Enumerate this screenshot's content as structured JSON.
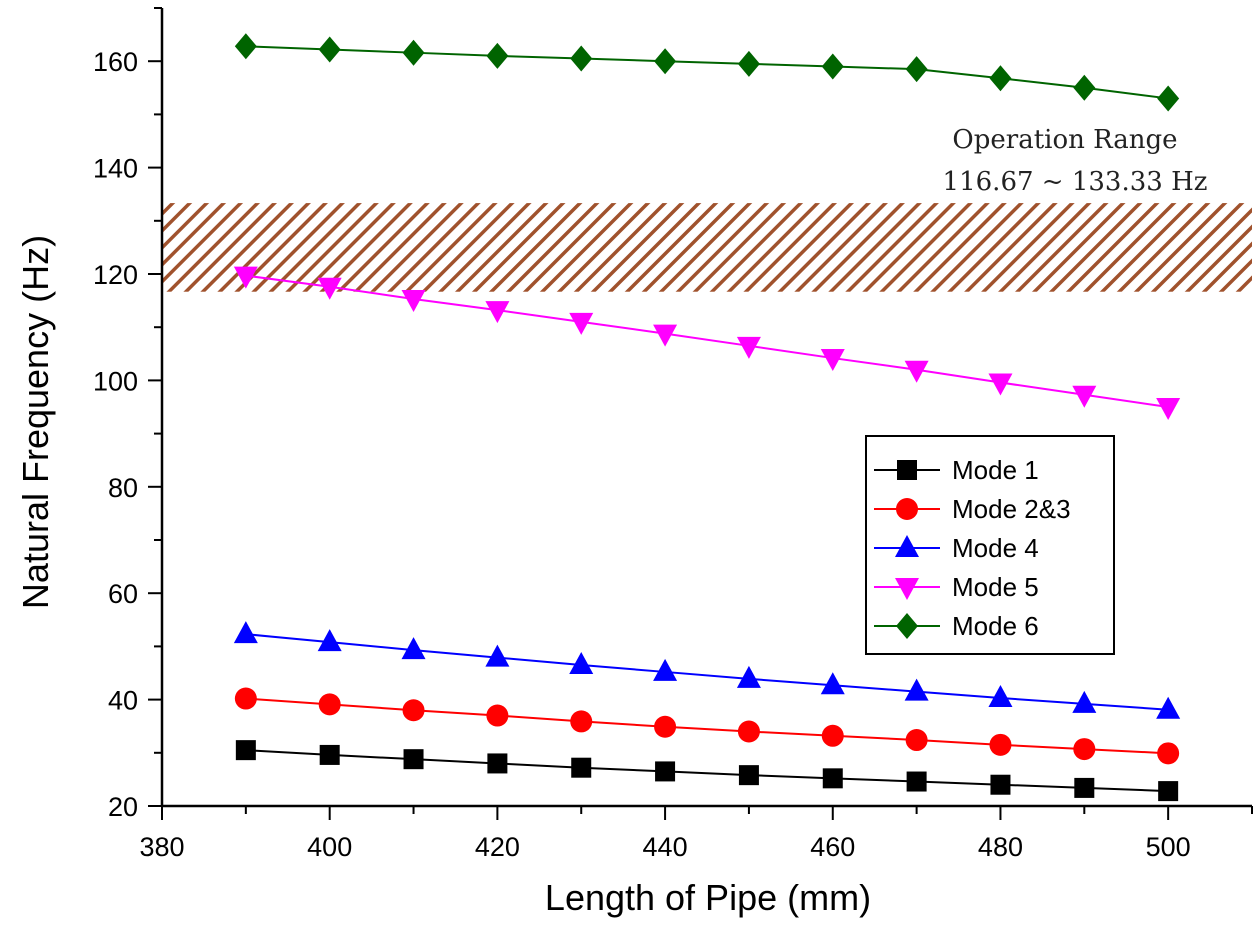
{
  "chart_data": {
    "type": "line",
    "title": "",
    "xlabel": "Length of Pipe (mm)",
    "ylabel": "Natural Frequency (Hz)",
    "xlim": [
      380,
      510
    ],
    "ylim": [
      20,
      170
    ],
    "xticks": [
      380,
      400,
      420,
      440,
      460,
      480,
      500
    ],
    "yticks": [
      20,
      40,
      60,
      80,
      100,
      120,
      140,
      160
    ],
    "x": [
      390,
      400,
      410,
      420,
      430,
      440,
      450,
      460,
      470,
      480,
      490,
      500
    ],
    "series": [
      {
        "name": "Mode 1",
        "color": "#000000",
        "marker": "square",
        "values": [
          30.5,
          29.6,
          28.8,
          28.0,
          27.2,
          26.5,
          25.8,
          25.2,
          24.6,
          24.0,
          23.4,
          22.8
        ]
      },
      {
        "name": "Mode 2&3",
        "color": "#ff0000",
        "marker": "circle",
        "values": [
          40.2,
          39.1,
          38.0,
          37.0,
          35.9,
          34.9,
          34.0,
          33.2,
          32.4,
          31.5,
          30.7,
          29.9
        ]
      },
      {
        "name": "Mode 4",
        "color": "#0000ff",
        "marker": "triangle-up",
        "values": [
          52.3,
          50.8,
          49.3,
          47.9,
          46.5,
          45.2,
          43.9,
          42.7,
          41.5,
          40.3,
          39.2,
          38.1
        ]
      },
      {
        "name": "Mode 5",
        "color": "#ff00ff",
        "marker": "triangle-down",
        "values": [
          119.7,
          117.6,
          115.3,
          113.2,
          111.0,
          108.8,
          106.5,
          104.2,
          102.0,
          99.6,
          97.3,
          95.0
        ]
      },
      {
        "name": "Mode 6",
        "color": "#006400",
        "marker": "diamond",
        "values": [
          162.8,
          162.2,
          161.6,
          161.0,
          160.5,
          160.0,
          159.5,
          159.0,
          158.5,
          156.8,
          155.0,
          153.0
        ]
      }
    ],
    "band": {
      "low": 116.67,
      "high": 133.33,
      "color": "#a0522d",
      "label_line1": "Operation Range",
      "label_line2": "116.67 ~ 133.33 Hz"
    },
    "legend": {
      "position": "center-right"
    }
  }
}
